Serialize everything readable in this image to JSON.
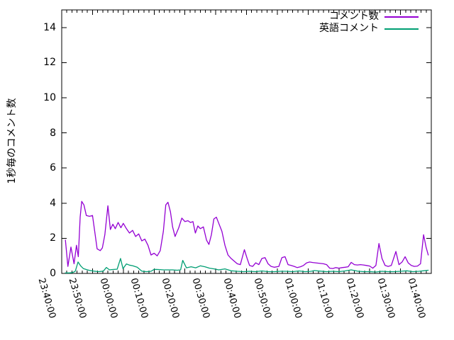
{
  "colors": {
    "background": "#ffffff",
    "axis": "#000000",
    "comments_line": "#9400d3",
    "english_comments_line": "#009e73"
  },
  "chart_data": {
    "type": "line",
    "title": "",
    "xlabel": "",
    "ylabel": "1秒毎のコメント数",
    "ylim": [
      0,
      15
    ],
    "y_ticks": [
      0,
      2,
      4,
      6,
      8,
      10,
      12,
      14
    ],
    "x_range_minutes": [
      0,
      120
    ],
    "x_tick_minutes": [
      0,
      10,
      20,
      30,
      40,
      50,
      60,
      70,
      80,
      90,
      100,
      110,
      120
    ],
    "x_tick_labels": [
      "23:40:00",
      "23:50:00",
      "00:00:00",
      "00:10:00",
      "00:20:00",
      "00:30:00",
      "00:40:00",
      "00:50:00",
      "01:00:00",
      "01:10:00",
      "01:20:00",
      "01:30:00",
      "01:40:00"
    ],
    "minor_x_subdivisions": 6,
    "grid": false,
    "legend_position": "top-right-inside",
    "series": [
      {
        "name": "コメント数",
        "color": "#9400d3",
        "points": [
          [
            1.2,
            1.9
          ],
          [
            2,
            0.4
          ],
          [
            3,
            1.5
          ],
          [
            4,
            0.55
          ],
          [
            4.8,
            1.6
          ],
          [
            5.4,
            0.95
          ],
          [
            6,
            3.2
          ],
          [
            6.5,
            4.1
          ],
          [
            7.2,
            3.9
          ],
          [
            8,
            3.3
          ],
          [
            9,
            3.25
          ],
          [
            10,
            3.3
          ],
          [
            10.7,
            2.4
          ],
          [
            11.5,
            1.4
          ],
          [
            12.5,
            1.3
          ],
          [
            13.2,
            1.45
          ],
          [
            14,
            2.2
          ],
          [
            15,
            3.85
          ],
          [
            15.8,
            2.5
          ],
          [
            16.6,
            2.8
          ],
          [
            17.4,
            2.55
          ],
          [
            18.3,
            2.9
          ],
          [
            19.2,
            2.6
          ],
          [
            20,
            2.85
          ],
          [
            21,
            2.55
          ],
          [
            22,
            2.3
          ],
          [
            23,
            2.45
          ],
          [
            24,
            2.1
          ],
          [
            25,
            2.25
          ],
          [
            26,
            1.85
          ],
          [
            27,
            1.95
          ],
          [
            28,
            1.6
          ],
          [
            29,
            1.05
          ],
          [
            30,
            1.15
          ],
          [
            31,
            1.0
          ],
          [
            32,
            1.3
          ],
          [
            33,
            2.4
          ],
          [
            33.8,
            3.9
          ],
          [
            34.5,
            4.05
          ],
          [
            35.3,
            3.5
          ],
          [
            36,
            2.65
          ],
          [
            36.8,
            2.1
          ],
          [
            38,
            2.6
          ],
          [
            39,
            3.15
          ],
          [
            40,
            2.95
          ],
          [
            41,
            3.0
          ],
          [
            41.8,
            2.9
          ],
          [
            42.6,
            2.95
          ],
          [
            43.4,
            2.3
          ],
          [
            44.2,
            2.7
          ],
          [
            45,
            2.55
          ],
          [
            46,
            2.65
          ],
          [
            47,
            1.9
          ],
          [
            47.8,
            1.65
          ],
          [
            48.6,
            2.2
          ],
          [
            49.4,
            3.1
          ],
          [
            50.2,
            3.2
          ],
          [
            51,
            2.85
          ],
          [
            52,
            2.4
          ],
          [
            53,
            1.6
          ],
          [
            54,
            1.05
          ],
          [
            55,
            0.85
          ],
          [
            56,
            0.7
          ],
          [
            57,
            0.55
          ],
          [
            58,
            0.5
          ],
          [
            59.3,
            1.35
          ],
          [
            60.2,
            0.85
          ],
          [
            61,
            0.45
          ],
          [
            62,
            0.4
          ],
          [
            63,
            0.6
          ],
          [
            64,
            0.5
          ],
          [
            65,
            0.85
          ],
          [
            66,
            0.9
          ],
          [
            67,
            0.55
          ],
          [
            68,
            0.4
          ],
          [
            69,
            0.35
          ],
          [
            70.5,
            0.4
          ],
          [
            71.5,
            0.9
          ],
          [
            72.5,
            0.95
          ],
          [
            73.5,
            0.5
          ],
          [
            74.5,
            0.45
          ],
          [
            75.5,
            0.4
          ],
          [
            76.5,
            0.33
          ],
          [
            77.5,
            0.38
          ],
          [
            78.5,
            0.45
          ],
          [
            79.5,
            0.6
          ],
          [
            80.5,
            0.65
          ],
          [
            81.5,
            0.62
          ],
          [
            82.5,
            0.6
          ],
          [
            83.5,
            0.58
          ],
          [
            85,
            0.55
          ],
          [
            86,
            0.5
          ],
          [
            87,
            0.3
          ],
          [
            88,
            0.28
          ],
          [
            89,
            0.33
          ],
          [
            90,
            0.3
          ],
          [
            91,
            0.33
          ],
          [
            92,
            0.35
          ],
          [
            93,
            0.38
          ],
          [
            94,
            0.63
          ],
          [
            95,
            0.5
          ],
          [
            96,
            0.48
          ],
          [
            97,
            0.5
          ],
          [
            98,
            0.48
          ],
          [
            99,
            0.45
          ],
          [
            100,
            0.42
          ],
          [
            101,
            0.3
          ],
          [
            102,
            0.45
          ],
          [
            103,
            1.7
          ],
          [
            104,
            0.85
          ],
          [
            105,
            0.45
          ],
          [
            106,
            0.4
          ],
          [
            107,
            0.45
          ],
          [
            108.5,
            1.25
          ],
          [
            109.5,
            0.5
          ],
          [
            110.5,
            0.65
          ],
          [
            111.5,
            0.95
          ],
          [
            112.5,
            0.6
          ],
          [
            113.5,
            0.45
          ],
          [
            114.5,
            0.4
          ],
          [
            115.5,
            0.42
          ],
          [
            116.5,
            0.55
          ],
          [
            117.5,
            2.2
          ],
          [
            118.3,
            1.5
          ],
          [
            119,
            1.05
          ]
        ]
      },
      {
        "name": "英語コメント",
        "color": "#009e73",
        "points": [
          [
            1.2,
            0.03
          ],
          [
            2.5,
            0.03
          ],
          [
            3.5,
            0.05
          ],
          [
            4.4,
            0.12
          ],
          [
            5.3,
            0.65
          ],
          [
            6.2,
            0.42
          ],
          [
            7,
            0.28
          ],
          [
            8,
            0.22
          ],
          [
            9,
            0.17
          ],
          [
            10.5,
            0.13
          ],
          [
            12,
            0.1
          ],
          [
            13.5,
            0.13
          ],
          [
            14.5,
            0.34
          ],
          [
            15.5,
            0.2
          ],
          [
            16.5,
            0.22
          ],
          [
            18,
            0.24
          ],
          [
            19.1,
            0.85
          ],
          [
            19.9,
            0.27
          ],
          [
            21,
            0.54
          ],
          [
            22,
            0.47
          ],
          [
            23,
            0.44
          ],
          [
            24.5,
            0.35
          ],
          [
            26,
            0.13
          ],
          [
            27.5,
            0.1
          ],
          [
            29,
            0.12
          ],
          [
            30,
            0.23
          ],
          [
            31.5,
            0.22
          ],
          [
            33,
            0.2
          ],
          [
            34.5,
            0.2
          ],
          [
            36,
            0.2
          ],
          [
            37.5,
            0.18
          ],
          [
            38.6,
            0.2
          ],
          [
            39.3,
            0.74
          ],
          [
            40.5,
            0.32
          ],
          [
            42,
            0.38
          ],
          [
            43.5,
            0.32
          ],
          [
            45,
            0.43
          ],
          [
            46.5,
            0.38
          ],
          [
            48,
            0.3
          ],
          [
            49.5,
            0.26
          ],
          [
            51,
            0.2
          ],
          [
            53,
            0.26
          ],
          [
            55,
            0.15
          ],
          [
            57,
            0.12
          ],
          [
            59,
            0.1
          ],
          [
            61,
            0.12
          ],
          [
            63,
            0.1
          ],
          [
            65,
            0.14
          ],
          [
            67,
            0.1
          ],
          [
            69,
            0.1
          ],
          [
            71,
            0.12
          ],
          [
            73,
            0.12
          ],
          [
            75,
            0.1
          ],
          [
            77,
            0.14
          ],
          [
            79,
            0.1
          ],
          [
            81,
            0.12
          ],
          [
            82,
            0.16
          ],
          [
            84,
            0.13
          ],
          [
            86,
            0.1
          ],
          [
            88,
            0.12
          ],
          [
            90,
            0.1
          ],
          [
            92,
            0.14
          ],
          [
            94,
            0.2
          ],
          [
            96,
            0.13
          ],
          [
            98,
            0.1
          ],
          [
            100,
            0.1
          ],
          [
            102,
            0.08
          ],
          [
            104,
            0.12
          ],
          [
            106,
            0.1
          ],
          [
            108,
            0.1
          ],
          [
            110,
            0.12
          ],
          [
            112,
            0.15
          ],
          [
            114,
            0.1
          ],
          [
            116,
            0.12
          ],
          [
            117.5,
            0.15
          ],
          [
            119,
            0.18
          ]
        ]
      }
    ]
  }
}
